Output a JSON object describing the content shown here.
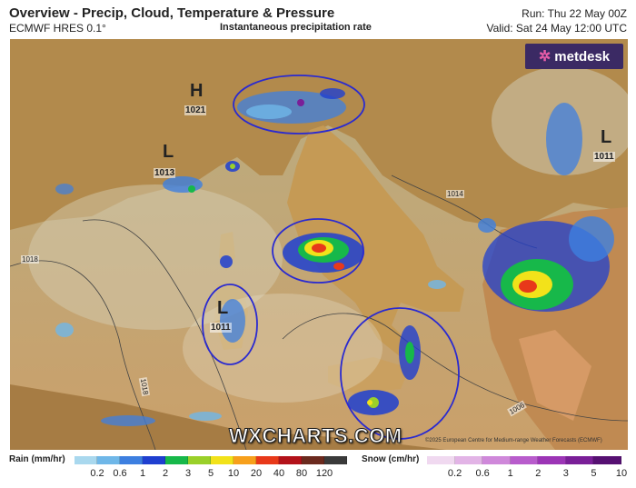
{
  "header": {
    "title": "Overview - Precip, Cloud, Temperature & Pressure",
    "model": "ECMWF HRES 0.1°",
    "subtitle": "Instantaneous precipitation rate",
    "run": "Run: Thu 22 May 00Z",
    "valid": "Valid: Sat 24 May 12:00 UTC"
  },
  "logo": {
    "icon": "metdesk-star-icon",
    "text": "metdesk",
    "bg": "#3b2a64",
    "accent": "#e85da8"
  },
  "watermark": "WXCHARTS.COM",
  "credit": "©2025 European Centre for Medium-range Weather Forecasts (ECMWF)",
  "pressure_systems": [
    {
      "type": "H",
      "value": "1021"
    },
    {
      "type": "L",
      "value": "1013"
    },
    {
      "type": "L",
      "value": "1011"
    },
    {
      "type": "L",
      "value": "1011"
    }
  ],
  "isobar_labels": [
    "1018",
    "1018",
    "1014",
    "1006"
  ],
  "legend": {
    "rain": {
      "title": "Rain (mm/hr)",
      "ticks": [
        "0.2",
        "0.6",
        "1",
        "2",
        "3",
        "5",
        "10",
        "20",
        "40",
        "80",
        "120"
      ],
      "colors": [
        "#a9d8ee",
        "#6fb7e8",
        "#3d7fe0",
        "#1f3fd0",
        "#17b84a",
        "#9ad02a",
        "#f2e21a",
        "#f7a01c",
        "#e8391a",
        "#b3121a",
        "#6b2a1e",
        "#3a3a3a"
      ]
    },
    "snow": {
      "title": "Snow (cm/hr)",
      "ticks": [
        "0.2",
        "0.6",
        "1",
        "2",
        "3",
        "5",
        "10"
      ],
      "colors": [
        "#f0d9f0",
        "#e2b4e6",
        "#cf88da",
        "#b85ccc",
        "#9c35b6",
        "#7a1f98",
        "#561072"
      ]
    }
  }
}
